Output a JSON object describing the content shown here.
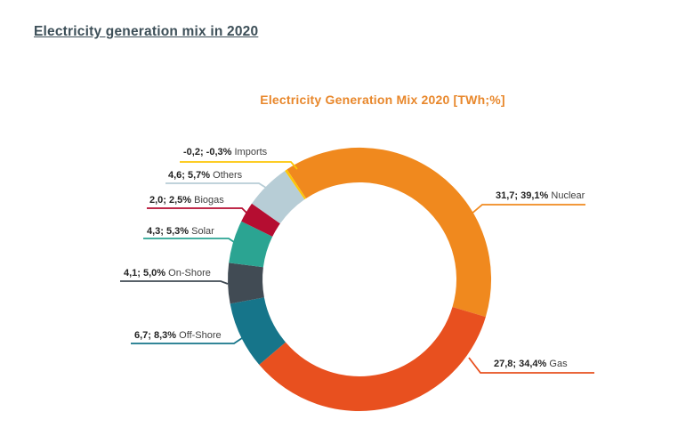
{
  "page": {
    "heading": "Electricity generation mix in 2020"
  },
  "chart_data": {
    "type": "pie",
    "subtype": "donut",
    "title": "Electricity Generation Mix 2020 [TWh;%]",
    "unit": "TWh;%",
    "legend_position": "none",
    "labels_style": "callout-leader-lines",
    "start_angle_deg": -33.4,
    "clockwise": true,
    "segments": [
      {
        "name": "Nuclear",
        "twh": 31.7,
        "pct": 39.1,
        "label": "31,7; 39,1%",
        "color": "#F0891E"
      },
      {
        "name": "Gas",
        "twh": 27.8,
        "pct": 34.4,
        "label": "27,8; 34,4%",
        "color": "#E8501F"
      },
      {
        "name": "Off-Shore",
        "twh": 6.7,
        "pct": 8.3,
        "label": "6,7; 8,3%",
        "color": "#16758A"
      },
      {
        "name": "On-Shore",
        "twh": 4.1,
        "pct": 5.0,
        "label": "4,1; 5,0%",
        "color": "#414B54"
      },
      {
        "name": "Solar",
        "twh": 4.3,
        "pct": 5.3,
        "label": "4,3; 5,3%",
        "color": "#2BA492"
      },
      {
        "name": "Biogas",
        "twh": 2.0,
        "pct": 2.5,
        "label": "2,0; 2,5%",
        "color": "#B50D31"
      },
      {
        "name": "Others",
        "twh": 4.6,
        "pct": 5.7,
        "label": "4,6; 5,7%",
        "color": "#B7CDD6"
      },
      {
        "name": "Imports",
        "twh": -0.2,
        "pct": -0.3,
        "label": "-0,2; -0,3%",
        "color": "#FDC608"
      }
    ]
  }
}
